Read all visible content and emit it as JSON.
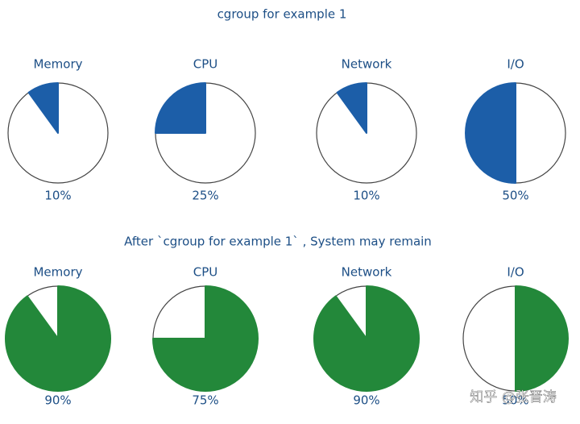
{
  "headings": [
    "cgroup for example 1",
    "After `cgroup for example 1` , System may remain"
  ],
  "watermark": "知乎 @张晋涛",
  "chart_data": [
    {
      "type": "pie",
      "title": "Memory",
      "values": [
        10
      ],
      "value_labels": [
        "10%"
      ],
      "color": "#1c5ea8",
      "clockwise": false
    },
    {
      "type": "pie",
      "title": "CPU",
      "values": [
        25
      ],
      "value_labels": [
        "25%"
      ],
      "color": "#1c5ea8",
      "clockwise": false
    },
    {
      "type": "pie",
      "title": "Network",
      "values": [
        10
      ],
      "value_labels": [
        "10%"
      ],
      "color": "#1c5ea8",
      "clockwise": false
    },
    {
      "type": "pie",
      "title": "I/O",
      "values": [
        50
      ],
      "value_labels": [
        "50%"
      ],
      "color": "#1c5ea8",
      "clockwise": false
    },
    {
      "type": "pie",
      "title": "Memory",
      "values": [
        90
      ],
      "value_labels": [
        "90%"
      ],
      "color": "#23883a",
      "clockwise": true
    },
    {
      "type": "pie",
      "title": "CPU",
      "values": [
        75
      ],
      "value_labels": [
        "75%"
      ],
      "color": "#23883a",
      "clockwise": true
    },
    {
      "type": "pie",
      "title": "Network",
      "values": [
        90
      ],
      "value_labels": [
        "90%"
      ],
      "color": "#23883a",
      "clockwise": true
    },
    {
      "type": "pie",
      "title": "I/O",
      "values": [
        50
      ],
      "value_labels": [
        "50%"
      ],
      "color": "#23883a",
      "clockwise": true
    }
  ]
}
